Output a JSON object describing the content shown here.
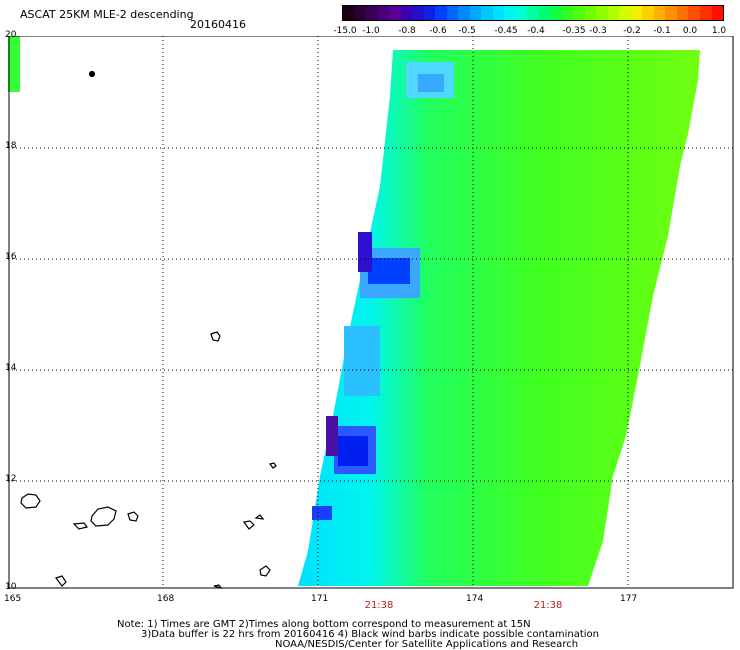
{
  "title": "ASCAT 25KM MLE-2 descending",
  "date": "20160416",
  "colorbar": {
    "labels": [
      "-15.0",
      "-1.0",
      "-0.8",
      "-0.6",
      "-0.5",
      "-0.45",
      "-0.4",
      "-0.35",
      "-0.3",
      "-0.2",
      "-0.1",
      "0.0",
      "1.0"
    ],
    "colors": [
      "#1a0016",
      "#2a0035",
      "#3a0058",
      "#4a007a",
      "#5a0098",
      "#3b00b0",
      "#2410c8",
      "#1020e0",
      "#0040ff",
      "#0066ff",
      "#0088ff",
      "#00a8ff",
      "#00c8ff",
      "#00e0ff",
      "#00f5f0",
      "#00ffd0",
      "#00ffa0",
      "#00ff70",
      "#10ff40",
      "#30ff20",
      "#50ff10",
      "#70ff00",
      "#90ff00",
      "#b0ff00",
      "#d0ff00",
      "#f0f000",
      "#ffd000",
      "#ffb000",
      "#ff9000",
      "#ff7000",
      "#ff5000",
      "#ff3000",
      "#ff1000"
    ]
  },
  "map": {
    "lat_labels": [
      "20",
      "18",
      "16",
      "14",
      "12",
      "10"
    ],
    "lon_labels": [
      "165",
      "168",
      "171",
      "174",
      "177"
    ],
    "lat_range": [
      10,
      20
    ],
    "lon_range": [
      165,
      179.2
    ]
  },
  "times": [
    "21:38",
    "21:38"
  ],
  "notes": {
    "line1": "Note: 1) Times are GMT 2)Times along bottom correspond to measurement at 15N",
    "line2": "3)Data buffer is 22 hrs from 20160416 4) Black wind barbs indicate possible contamination",
    "line3": "NOAA/NESDIS/Center for Satellite Applications and Research"
  }
}
